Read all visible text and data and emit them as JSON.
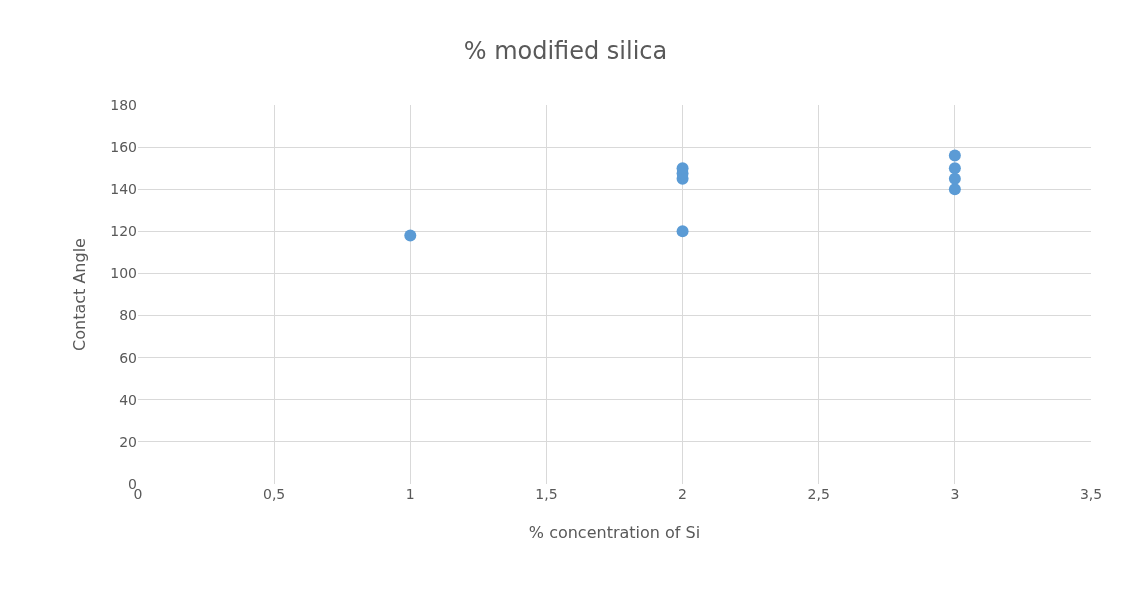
{
  "chart_data": {
    "type": "scatter",
    "title": "% modified silica",
    "xlabel": "% concentration of Si",
    "ylabel": "Contact Angle",
    "x": [
      1,
      2,
      2,
      2,
      2,
      3,
      3,
      3,
      3
    ],
    "values": [
      118,
      120,
      145,
      147.5,
      150,
      140,
      145,
      150,
      156
    ],
    "color": "#5b9bd5",
    "marker": "circle",
    "grid": true,
    "xlim": [
      0,
      3.5
    ],
    "xticks": [
      0,
      {
        "value": 0.5,
        "label": "0,5"
      },
      1,
      {
        "value": 1.5,
        "label": "1,5"
      },
      2,
      {
        "value": 2.5,
        "label": "2,5"
      },
      3,
      {
        "value": 3.5,
        "label": "3,5"
      }
    ],
    "ylim": [
      0,
      180
    ],
    "yticks": [
      0,
      20,
      40,
      60,
      80,
      100,
      120,
      140,
      160,
      180
    ]
  }
}
